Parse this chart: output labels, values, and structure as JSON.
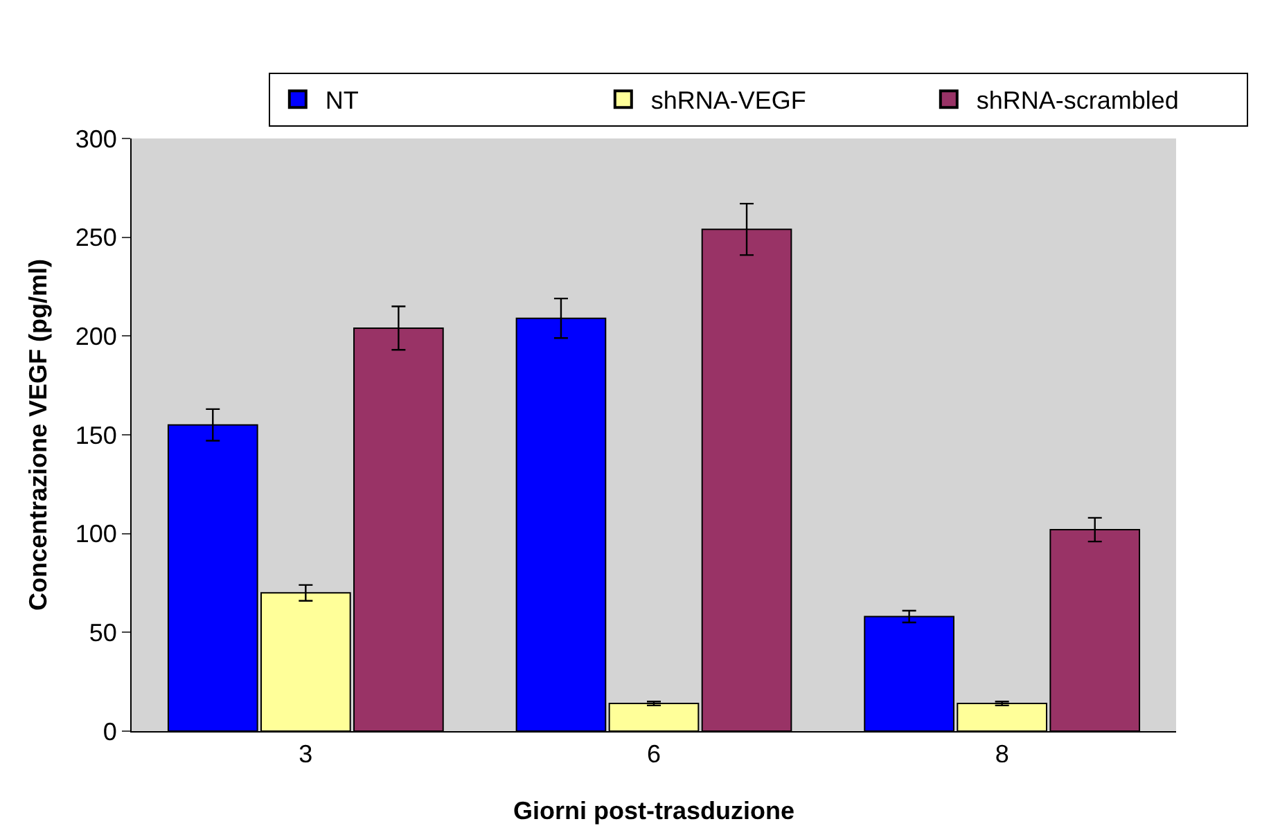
{
  "chart_data": {
    "type": "bar",
    "xlabel": "Giorni post-trasduzione",
    "ylabel": "Concentrazione VEGF (pg/ml)",
    "categories": [
      "3",
      "6",
      "8"
    ],
    "series": [
      {
        "name": "NT",
        "color": "#0000ff",
        "values": [
          155,
          209,
          58
        ],
        "errors": [
          8,
          10,
          3
        ]
      },
      {
        "name": "shRNA-VEGF",
        "color": "#ffff99",
        "values": [
          70,
          14,
          14
        ],
        "errors": [
          4,
          1,
          1
        ]
      },
      {
        "name": "shRNA-scrambled",
        "color": "#993366",
        "values": [
          204,
          254,
          102
        ],
        "errors": [
          11,
          13,
          6
        ]
      }
    ],
    "ylim": [
      0,
      300
    ],
    "yticks": [
      0,
      50,
      100,
      150,
      200,
      250,
      300
    ],
    "grid": false,
    "legend": "top"
  }
}
